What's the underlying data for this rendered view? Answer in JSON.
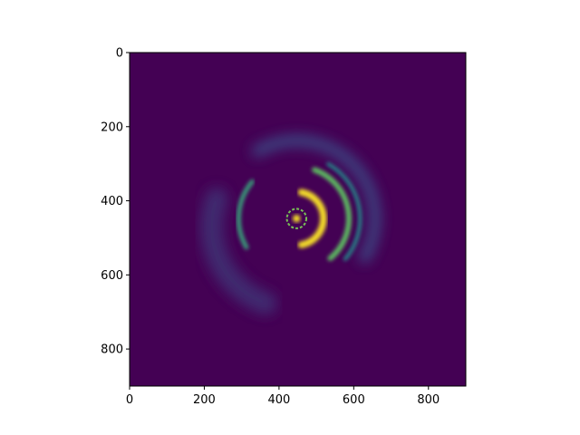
{
  "chart_data": {
    "type": "heatmap",
    "title": "",
    "xlabel": "",
    "ylabel": "",
    "xlim": [
      0,
      900
    ],
    "ylim": [
      900,
      0
    ],
    "xticks": [
      0,
      200,
      400,
      600,
      800
    ],
    "yticks": [
      0,
      200,
      400,
      600,
      800
    ],
    "xtick_labels": [
      "0",
      "200",
      "400",
      "600",
      "800"
    ],
    "ytick_labels": [
      "0",
      "200",
      "400",
      "600",
      "800"
    ],
    "colormap": "viridis",
    "background_value": 0,
    "features": [
      {
        "kind": "core-ring",
        "cx": 447,
        "cy": 448,
        "r": 26,
        "width": 5,
        "value": 0.8
      },
      {
        "kind": "central-spot",
        "cx": 447,
        "cy": 448,
        "r": 10,
        "value": 1.0
      },
      {
        "kind": "bright-arc",
        "cx": 447,
        "cy": 448,
        "r": 72,
        "width": 18,
        "a0": -80,
        "a1": 80,
        "value": 1.0
      },
      {
        "kind": "arc",
        "cx": 447,
        "cy": 448,
        "r": 140,
        "width": 14,
        "a0": -70,
        "a1": 50,
        "value": 0.75
      },
      {
        "kind": "arc",
        "cx": 447,
        "cy": 448,
        "r": 170,
        "width": 10,
        "a0": -60,
        "a1": 40,
        "value": 0.5
      },
      {
        "kind": "arc",
        "cx": 447,
        "cy": 448,
        "r": 155,
        "width": 12,
        "a0": 150,
        "a1": 220,
        "value": 0.6
      },
      {
        "kind": "halo",
        "cx": 447,
        "cy": 448,
        "r": 210,
        "width": 30,
        "a0": -120,
        "a1": 30,
        "value": 0.25
      },
      {
        "kind": "halo",
        "cx": 440,
        "cy": 470,
        "r": 220,
        "width": 60,
        "a0": 110,
        "a1": 200,
        "value": 0.15
      }
    ]
  }
}
